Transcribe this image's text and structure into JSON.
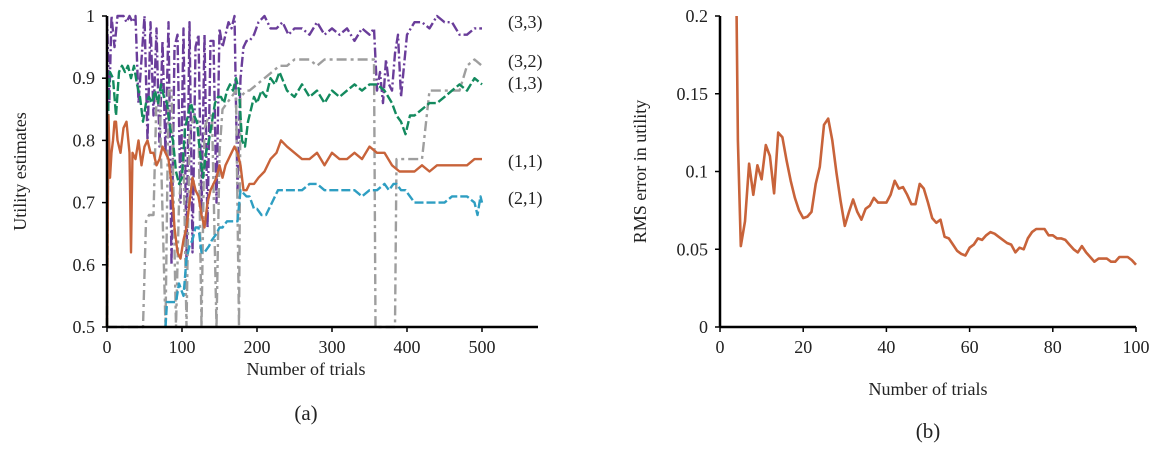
{
  "chart_data": [
    {
      "type": "line",
      "panel_label": "(a)",
      "title": "",
      "xlabel": "Number of trials",
      "ylabel": "Utility estimates",
      "xlim": [
        0,
        575
      ],
      "ylim": [
        0.5,
        1
      ],
      "xticks": [
        0,
        100,
        200,
        300,
        400,
        500
      ],
      "xtick_labels": [
        "0",
        "100",
        "200",
        "300",
        "400",
        "500"
      ],
      "yticks": [
        0.5,
        0.6,
        0.7,
        0.8,
        0.9,
        1
      ],
      "ytick_labels": [
        "0.5",
        "0.6",
        "0.7",
        "0.8",
        "0.9",
        "1"
      ],
      "grid": false,
      "legend": "inline-right",
      "series": [
        {
          "name": "(3,3)",
          "color": "#6a3d9a",
          "dash": "dashdot",
          "x": [
            0,
            3,
            6,
            10,
            14,
            18,
            22,
            26,
            30,
            34,
            38,
            42,
            46,
            50,
            54,
            58,
            62,
            66,
            70,
            74,
            78,
            82,
            86,
            90,
            94,
            98,
            102,
            106,
            110,
            114,
            118,
            122,
            126,
            130,
            134,
            138,
            142,
            146,
            150,
            154,
            158,
            162,
            166,
            170,
            174,
            178,
            182,
            186,
            190,
            196,
            202,
            210,
            218,
            226,
            234,
            242,
            250,
            260,
            270,
            280,
            290,
            300,
            310,
            320,
            330,
            340,
            350,
            356,
            360,
            364,
            368,
            372,
            376,
            380,
            384,
            388,
            392,
            396,
            400,
            410,
            420,
            430,
            440,
            450,
            460,
            470,
            480,
            490,
            500
          ],
          "y": [
            1.0,
            0.86,
            1.0,
            0.95,
            1.0,
            1.0,
            1.0,
            0.99,
            1.0,
            0.99,
            1.0,
            0.86,
            0.93,
            1.0,
            0.8,
            0.99,
            0.84,
            0.98,
            0.79,
            0.96,
            0.78,
            0.99,
            0.6,
            0.95,
            0.97,
            0.7,
            0.98,
            0.6,
            0.99,
            0.62,
            0.95,
            0.97,
            0.68,
            0.97,
            0.66,
            0.96,
            0.96,
            0.7,
            0.98,
            0.95,
            0.97,
            0.99,
            0.98,
            1.0,
            0.72,
            0.9,
            0.95,
            0.96,
            0.96,
            0.97,
            0.99,
            1.0,
            0.98,
            0.98,
            0.99,
            0.97,
            0.98,
            0.98,
            0.97,
            0.99,
            0.97,
            0.98,
            0.97,
            0.98,
            0.96,
            0.98,
            0.97,
            0.98,
            0.88,
            0.91,
            0.86,
            0.93,
            0.89,
            0.88,
            0.94,
            0.97,
            0.87,
            0.92,
            0.97,
            0.99,
            0.99,
            0.98,
            1.0,
            0.99,
            0.99,
            0.97,
            0.97,
            0.98,
            0.98
          ]
        },
        {
          "name": "(3,2)",
          "color": "#9e9e9e",
          "dash": "dashdotgray",
          "x": [
            0,
            48,
            52,
            56,
            62,
            66,
            70,
            78,
            82,
            86,
            92,
            96,
            102,
            106,
            110,
            116,
            122,
            126,
            130,
            136,
            140,
            146,
            150,
            154,
            160,
            166,
            172,
            176,
            178,
            186,
            190,
            200,
            210,
            220,
            230,
            240,
            250,
            260,
            270,
            280,
            290,
            300,
            310,
            320,
            330,
            340,
            350,
            356,
            358,
            384,
            386,
            390,
            396,
            400,
            410,
            420,
            430,
            440,
            450,
            460,
            470,
            480,
            490,
            500
          ],
          "y": [
            0.5,
            0.5,
            0.67,
            0.68,
            0.68,
            0.87,
            0.87,
            0.5,
            0.88,
            0.88,
            0.5,
            0.7,
            0.78,
            0.5,
            0.81,
            0.84,
            0.83,
            0.5,
            0.82,
            0.84,
            0.84,
            0.5,
            0.78,
            0.85,
            0.86,
            0.87,
            0.88,
            0.5,
            0.87,
            0.88,
            0.88,
            0.89,
            0.9,
            0.91,
            0.92,
            0.92,
            0.93,
            0.93,
            0.93,
            0.92,
            0.93,
            0.93,
            0.93,
            0.93,
            0.93,
            0.93,
            0.93,
            0.93,
            0.5,
            0.5,
            0.77,
            0.77,
            0.77,
            0.77,
            0.77,
            0.77,
            0.88,
            0.88,
            0.88,
            0.88,
            0.88,
            0.92,
            0.93,
            0.92
          ]
        },
        {
          "name": "(1,3)",
          "color": "#138a5e",
          "dash": "dash",
          "x": [
            0,
            2,
            4,
            8,
            12,
            16,
            20,
            24,
            28,
            32,
            36,
            40,
            44,
            48,
            52,
            56,
            60,
            64,
            68,
            72,
            76,
            80,
            84,
            88,
            92,
            96,
            100,
            104,
            108,
            112,
            116,
            120,
            124,
            128,
            132,
            136,
            140,
            144,
            148,
            152,
            156,
            160,
            164,
            168,
            172,
            176,
            180,
            184,
            188,
            192,
            196,
            200,
            206,
            212,
            218,
            224,
            230,
            240,
            250,
            260,
            270,
            280,
            290,
            300,
            310,
            320,
            330,
            340,
            350,
            360,
            370,
            380,
            386,
            392,
            398,
            404,
            410,
            420,
            430,
            440,
            450,
            460,
            470,
            480,
            490,
            500
          ],
          "y": [
            0.5,
            0.88,
            0.91,
            0.9,
            0.84,
            0.91,
            0.92,
            0.91,
            0.92,
            0.9,
            0.92,
            0.89,
            0.87,
            0.83,
            0.86,
            0.87,
            0.86,
            0.88,
            0.86,
            0.89,
            0.87,
            0.86,
            0.82,
            0.8,
            0.75,
            0.73,
            0.74,
            0.82,
            0.84,
            0.86,
            0.84,
            0.83,
            0.78,
            0.74,
            0.78,
            0.8,
            0.83,
            0.86,
            0.87,
            0.87,
            0.86,
            0.88,
            0.89,
            0.88,
            0.9,
            0.88,
            0.8,
            0.79,
            0.83,
            0.85,
            0.87,
            0.86,
            0.88,
            0.87,
            0.9,
            0.89,
            0.91,
            0.88,
            0.87,
            0.89,
            0.87,
            0.88,
            0.86,
            0.88,
            0.87,
            0.88,
            0.89,
            0.88,
            0.89,
            0.89,
            0.88,
            0.86,
            0.84,
            0.83,
            0.81,
            0.84,
            0.84,
            0.85,
            0.86,
            0.86,
            0.87,
            0.88,
            0.89,
            0.88,
            0.9,
            0.89
          ]
        },
        {
          "name": "(1,1)",
          "color": "#c8633a",
          "dash": "solid",
          "x": [
            0,
            2,
            4,
            6,
            8,
            10,
            12,
            14,
            18,
            22,
            26,
            30,
            32,
            34,
            38,
            42,
            46,
            50,
            54,
            58,
            62,
            66,
            70,
            74,
            78,
            82,
            86,
            90,
            94,
            98,
            102,
            106,
            110,
            114,
            118,
            122,
            126,
            130,
            134,
            138,
            142,
            146,
            150,
            154,
            158,
            162,
            166,
            170,
            174,
            178,
            182,
            186,
            190,
            196,
            202,
            210,
            218,
            226,
            232,
            240,
            250,
            260,
            270,
            280,
            290,
            300,
            310,
            320,
            330,
            340,
            350,
            360,
            370,
            380,
            390,
            396,
            400,
            410,
            420,
            430,
            440,
            450,
            460,
            470,
            480,
            490,
            500
          ],
          "y": [
            0.5,
            0.84,
            0.74,
            0.78,
            0.8,
            0.83,
            0.83,
            0.8,
            0.78,
            0.82,
            0.83,
            0.78,
            0.62,
            0.78,
            0.77,
            0.8,
            0.76,
            0.79,
            0.8,
            0.78,
            0.78,
            0.76,
            0.77,
            0.79,
            0.78,
            0.77,
            0.73,
            0.66,
            0.62,
            0.61,
            0.64,
            0.66,
            0.7,
            0.74,
            0.72,
            0.71,
            0.68,
            0.66,
            0.7,
            0.72,
            0.73,
            0.74,
            0.76,
            0.74,
            0.76,
            0.77,
            0.78,
            0.79,
            0.78,
            0.76,
            0.72,
            0.72,
            0.73,
            0.73,
            0.74,
            0.75,
            0.77,
            0.78,
            0.8,
            0.79,
            0.78,
            0.77,
            0.77,
            0.78,
            0.76,
            0.78,
            0.77,
            0.77,
            0.78,
            0.77,
            0.79,
            0.78,
            0.78,
            0.76,
            0.75,
            0.75,
            0.75,
            0.75,
            0.76,
            0.75,
            0.76,
            0.76,
            0.76,
            0.76,
            0.76,
            0.77,
            0.77
          ]
        },
        {
          "name": "(2,1)",
          "color": "#2e9ec2",
          "dash": "dash",
          "x": [
            78,
            80,
            92,
            96,
            102,
            106,
            110,
            114,
            118,
            122,
            126,
            130,
            136,
            140,
            146,
            150,
            154,
            160,
            164,
            170,
            174,
            178,
            186,
            190,
            196,
            200,
            206,
            212,
            220,
            228,
            240,
            250,
            260,
            270,
            280,
            290,
            300,
            310,
            320,
            330,
            340,
            350,
            360,
            370,
            376,
            382,
            386,
            392,
            398,
            404,
            410,
            420,
            430,
            440,
            450,
            460,
            470,
            480,
            490,
            494,
            498,
            500
          ],
          "y": [
            0.5,
            0.54,
            0.54,
            0.57,
            0.55,
            0.61,
            0.63,
            0.64,
            0.66,
            0.66,
            0.62,
            0.62,
            0.63,
            0.64,
            0.65,
            0.66,
            0.66,
            0.67,
            0.67,
            0.67,
            0.67,
            0.72,
            0.71,
            0.71,
            0.69,
            0.69,
            0.68,
            0.68,
            0.7,
            0.72,
            0.72,
            0.72,
            0.72,
            0.73,
            0.73,
            0.72,
            0.72,
            0.72,
            0.72,
            0.72,
            0.71,
            0.72,
            0.72,
            0.73,
            0.72,
            0.73,
            0.73,
            0.72,
            0.72,
            0.71,
            0.7,
            0.7,
            0.7,
            0.7,
            0.7,
            0.71,
            0.71,
            0.71,
            0.7,
            0.68,
            0.71,
            0.7
          ]
        }
      ]
    },
    {
      "type": "line",
      "panel_label": "(b)",
      "title": "",
      "xlabel": "Number of trials",
      "ylabel": "RMS error in utility",
      "xlim": [
        0,
        100
      ],
      "ylim": [
        0,
        0.2
      ],
      "xticks": [
        0,
        20,
        40,
        60,
        80,
        100
      ],
      "xtick_labels": [
        "0",
        "20",
        "40",
        "60",
        "80",
        "100"
      ],
      "yticks": [
        0,
        0.05,
        0.1,
        0.15,
        0.2
      ],
      "ytick_labels": [
        "0",
        "0.05",
        "0.1",
        "0.15",
        "0.2"
      ],
      "grid": false,
      "legend": "none",
      "series": [
        {
          "name": "RMS error",
          "color": "#c8633a",
          "x": [
            4,
            4.3,
            5,
            6,
            7,
            8,
            9,
            10,
            11,
            12,
            13,
            14,
            15,
            16,
            17,
            18,
            19,
            20,
            21,
            22,
            23,
            24,
            25,
            26,
            27,
            28,
            29,
            30,
            31,
            32,
            33,
            34,
            35,
            36,
            37,
            38,
            39,
            40,
            41,
            42,
            43,
            44,
            45,
            46,
            47,
            48,
            49,
            50,
            51,
            52,
            53,
            54,
            55,
            56,
            57,
            58,
            59,
            60,
            61,
            62,
            63,
            64,
            65,
            66,
            67,
            68,
            69,
            70,
            71,
            72,
            73,
            74,
            75,
            76,
            77,
            78,
            79,
            80,
            81,
            82,
            83,
            84,
            85,
            86,
            87,
            88,
            89,
            90,
            91,
            92,
            93,
            94,
            95,
            96,
            97,
            98,
            99,
            100
          ],
          "y": [
            0.2,
            0.12,
            0.052,
            0.068,
            0.105,
            0.085,
            0.104,
            0.095,
            0.117,
            0.11,
            0.086,
            0.125,
            0.122,
            0.107,
            0.094,
            0.083,
            0.075,
            0.07,
            0.071,
            0.074,
            0.092,
            0.103,
            0.13,
            0.134,
            0.12,
            0.099,
            0.081,
            0.065,
            0.074,
            0.082,
            0.074,
            0.069,
            0.076,
            0.078,
            0.083,
            0.08,
            0.08,
            0.08,
            0.085,
            0.094,
            0.089,
            0.09,
            0.085,
            0.079,
            0.079,
            0.092,
            0.089,
            0.08,
            0.07,
            0.067,
            0.069,
            0.058,
            0.057,
            0.053,
            0.049,
            0.047,
            0.046,
            0.051,
            0.053,
            0.057,
            0.056,
            0.059,
            0.061,
            0.06,
            0.058,
            0.056,
            0.054,
            0.053,
            0.048,
            0.051,
            0.05,
            0.057,
            0.061,
            0.063,
            0.063,
            0.063,
            0.059,
            0.059,
            0.057,
            0.057,
            0.056,
            0.053,
            0.05,
            0.048,
            0.052,
            0.048,
            0.045,
            0.042,
            0.044,
            0.044,
            0.044,
            0.042,
            0.042,
            0.045,
            0.045,
            0.045,
            0.043,
            0.04
          ]
        }
      ]
    }
  ]
}
